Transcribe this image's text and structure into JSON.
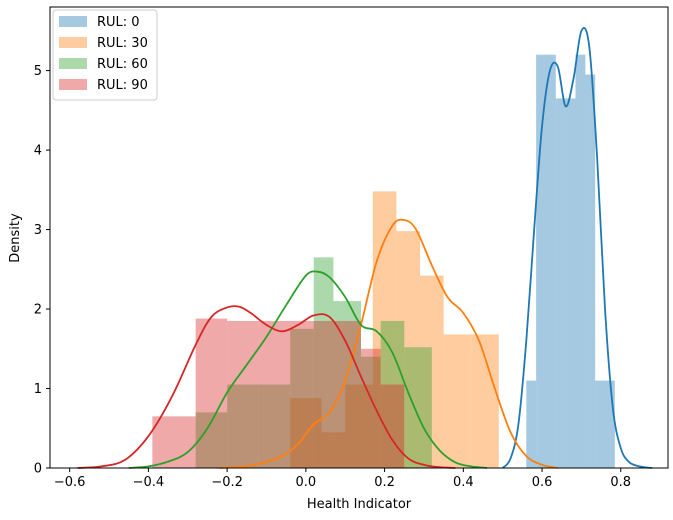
{
  "chart_data": {
    "type": "bar",
    "subtype": "histogram-with-kde",
    "title": "",
    "xlabel": "Health Indicator",
    "ylabel": "Density",
    "xlim": [
      -0.65,
      0.92
    ],
    "ylim": [
      0,
      5.8
    ],
    "xticks": [
      -0.6,
      -0.4,
      -0.2,
      0.0,
      0.2,
      0.4,
      0.6,
      0.8
    ],
    "xtick_labels": [
      "−0.6",
      "−0.4",
      "−0.2",
      "0.0",
      "0.2",
      "0.4",
      "0.6",
      "0.8"
    ],
    "yticks": [
      0,
      1,
      2,
      3,
      4,
      5
    ],
    "ytick_labels": [
      "0",
      "1",
      "2",
      "3",
      "4",
      "5"
    ],
    "grid": false,
    "legend_position": "top-left",
    "series": [
      {
        "name": "RUL: 0",
        "color": "#1f77b4",
        "bin_edges": [
          0.56,
          0.585,
          0.61,
          0.635,
          0.66,
          0.685,
          0.71,
          0.735,
          0.76,
          0.785,
          0.81
        ],
        "densities": [
          1.1,
          5.2,
          5.2,
          4.65,
          4.65,
          5.2,
          4.95,
          1.1,
          1.1,
          0
        ],
        "kde_x": [
          0.5,
          0.52,
          0.54,
          0.56,
          0.58,
          0.6,
          0.62,
          0.64,
          0.66,
          0.68,
          0.7,
          0.72,
          0.74,
          0.76,
          0.78,
          0.8,
          0.82,
          0.84,
          0.86,
          0.88
        ],
        "kde_y": [
          0.0,
          0.12,
          0.55,
          1.6,
          3.0,
          4.3,
          5.0,
          5.05,
          4.55,
          4.9,
          5.5,
          5.3,
          3.9,
          2.0,
          0.75,
          0.25,
          0.08,
          0.03,
          0.01,
          0.0
        ]
      },
      {
        "name": "RUL: 30",
        "color": "#ff7f0e",
        "bin_edges": [
          -0.04,
          0.04,
          0.1,
          0.17,
          0.23,
          0.29,
          0.35,
          0.42,
          0.49
        ],
        "densities": [
          0.88,
          0.45,
          1.05,
          3.48,
          2.98,
          2.42,
          1.68,
          1.68
        ],
        "kde_x": [
          -0.22,
          -0.18,
          -0.14,
          -0.1,
          -0.06,
          -0.02,
          0.02,
          0.06,
          0.1,
          0.14,
          0.18,
          0.22,
          0.25,
          0.28,
          0.32,
          0.36,
          0.4,
          0.44,
          0.48,
          0.52,
          0.56,
          0.6,
          0.64
        ],
        "kde_y": [
          0.0,
          0.01,
          0.03,
          0.08,
          0.15,
          0.3,
          0.55,
          0.7,
          1.1,
          1.8,
          2.6,
          3.05,
          3.12,
          3.0,
          2.55,
          2.15,
          1.95,
          1.6,
          1.0,
          0.45,
          0.15,
          0.04,
          0.0
        ]
      },
      {
        "name": "RUL: 60",
        "color": "#2ca02c",
        "bin_edges": [
          -0.28,
          -0.2,
          -0.12,
          -0.04,
          0.02,
          0.07,
          0.14,
          0.19,
          0.25,
          0.32
        ],
        "densities": [
          0.7,
          1.05,
          1.05,
          1.75,
          2.65,
          2.1,
          1.4,
          1.85,
          1.52
        ],
        "kde_x": [
          -0.45,
          -0.4,
          -0.35,
          -0.3,
          -0.25,
          -0.2,
          -0.15,
          -0.1,
          -0.05,
          0.0,
          0.03,
          0.06,
          0.1,
          0.14,
          0.18,
          0.22,
          0.26,
          0.3,
          0.34,
          0.38,
          0.42,
          0.46
        ],
        "kde_y": [
          0.0,
          0.02,
          0.08,
          0.2,
          0.5,
          0.95,
          1.3,
          1.65,
          2.05,
          2.42,
          2.47,
          2.4,
          2.15,
          1.8,
          1.72,
          1.45,
          0.95,
          0.5,
          0.22,
          0.07,
          0.02,
          0.0
        ]
      },
      {
        "name": "RUL: 90",
        "color": "#d62728",
        "bin_edges": [
          -0.39,
          -0.28,
          -0.2,
          -0.12,
          -0.04,
          0.02,
          0.07,
          0.14,
          0.19,
          0.25
        ],
        "densities": [
          0.65,
          1.88,
          1.85,
          1.85,
          1.85,
          1.85,
          1.85,
          1.5,
          1.05
        ],
        "kde_x": [
          -0.58,
          -0.52,
          -0.46,
          -0.4,
          -0.34,
          -0.28,
          -0.24,
          -0.2,
          -0.17,
          -0.14,
          -0.1,
          -0.06,
          -0.02,
          0.02,
          0.06,
          0.1,
          0.14,
          0.18,
          0.22,
          0.26,
          0.3,
          0.34,
          0.38
        ],
        "kde_y": [
          0.0,
          0.02,
          0.1,
          0.4,
          0.9,
          1.55,
          1.9,
          2.02,
          2.03,
          1.95,
          1.8,
          1.72,
          1.8,
          1.92,
          1.9,
          1.6,
          1.15,
          0.72,
          0.35,
          0.12,
          0.04,
          0.01,
          0.0
        ]
      }
    ]
  }
}
